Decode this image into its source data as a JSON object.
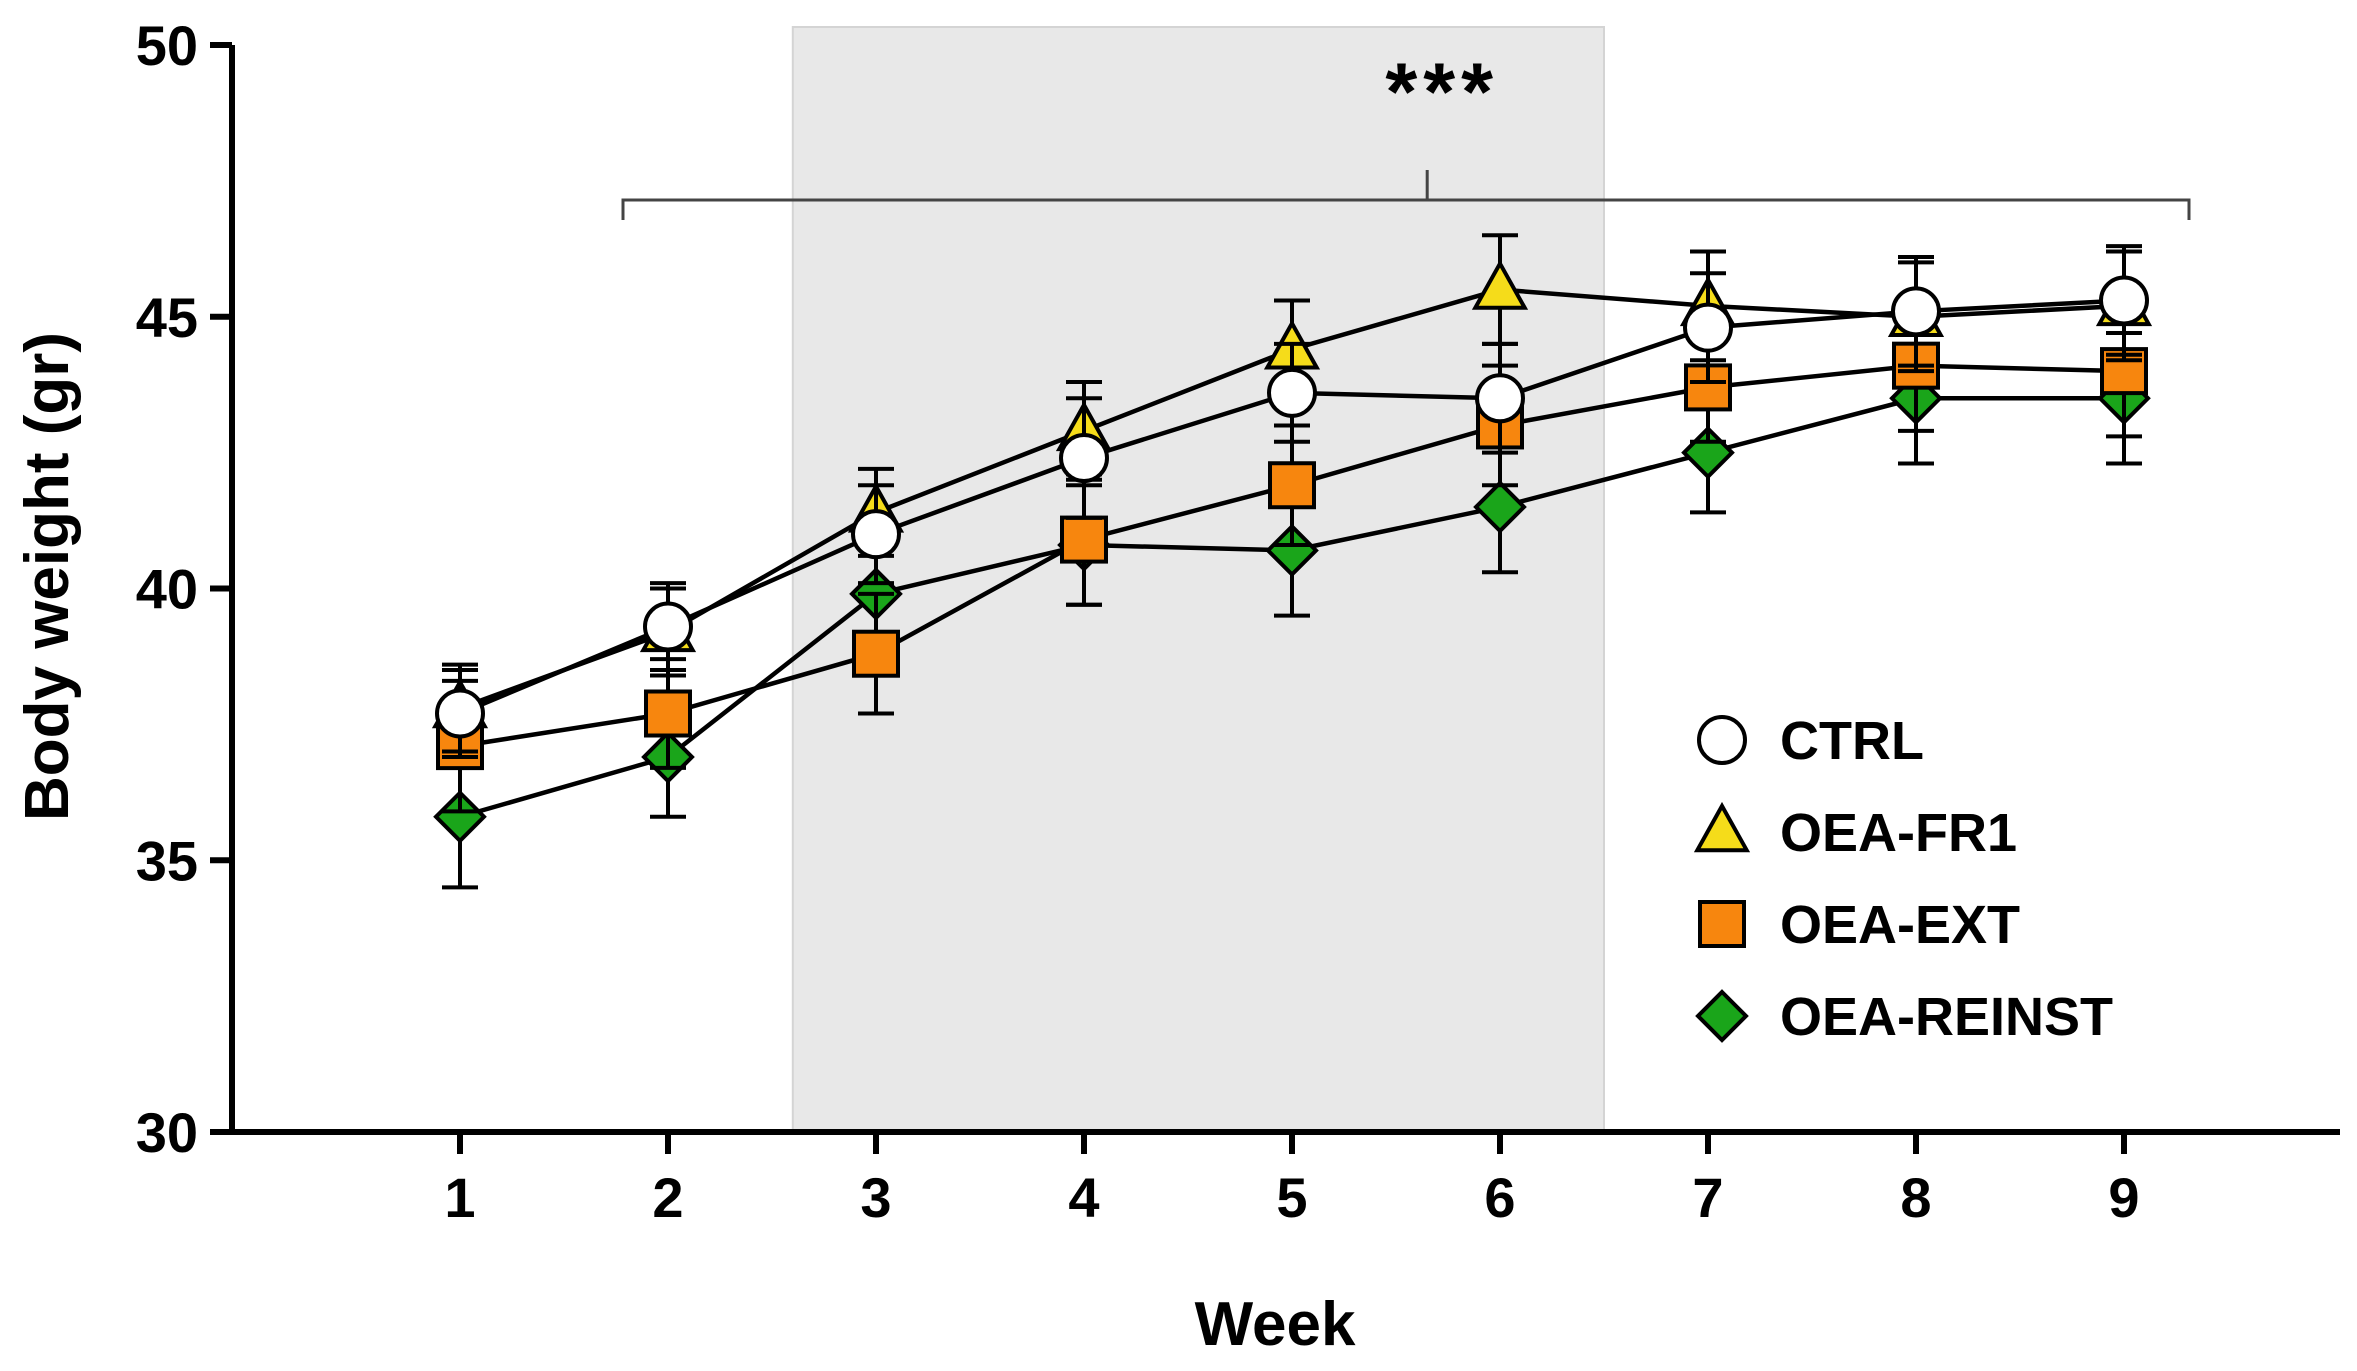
{
  "chart_data": {
    "type": "line",
    "title": "",
    "xlabel": "Week",
    "ylabel": "Body weight (gr)",
    "x": [
      1,
      2,
      3,
      4,
      5,
      6,
      7,
      8,
      9
    ],
    "x_tick_labels": [
      "1",
      "2",
      "3",
      "4",
      "5",
      "6",
      "7",
      "8",
      "9"
    ],
    "xlim": [
      0,
      9.9
    ],
    "ylim": [
      30,
      50
    ],
    "y_ticks": [
      30,
      35,
      40,
      45,
      50
    ],
    "y_tick_labels": [
      "30",
      "35",
      "40",
      "45",
      "50"
    ],
    "grid": false,
    "legend_position": "lower-right",
    "shaded_region": {
      "x_start": 2.6,
      "x_end": 6.5,
      "color": "#e8e8e8"
    },
    "significance": {
      "label": "***",
      "x_start": 2,
      "x_end": 9,
      "center_x": 5.65
    },
    "series": [
      {
        "name": "CTRL",
        "marker": "circle",
        "color": "#ffffff",
        "values": [
          37.7,
          39.3,
          41.0,
          42.4,
          43.6,
          43.5,
          44.8,
          45.1,
          45.3
        ],
        "errors": [
          0.8,
          0.8,
          0.9,
          1.1,
          0.9,
          1.0,
          1.0,
          1.0,
          1.0
        ]
      },
      {
        "name": "OEA-FR1",
        "marker": "triangle",
        "color": "#f5dc1a",
        "values": [
          37.8,
          39.2,
          41.4,
          42.9,
          44.4,
          45.5,
          45.2,
          45.0,
          45.2
        ],
        "errors": [
          0.8,
          0.8,
          0.8,
          0.9,
          0.9,
          1.0,
          1.0,
          1.0,
          1.0
        ]
      },
      {
        "name": "OEA-EXT",
        "marker": "square",
        "color": "#f7860e",
        "values": [
          37.1,
          37.7,
          38.8,
          40.9,
          41.9,
          43.0,
          43.7,
          44.1,
          44.0
        ],
        "errors": [
          1.2,
          1.0,
          1.1,
          1.2,
          1.1,
          1.1,
          1.0,
          1.2,
          1.2
        ]
      },
      {
        "name": "OEA-REINST",
        "marker": "diamond",
        "color": "#1aa51a",
        "values": [
          35.8,
          36.9,
          39.9,
          40.8,
          40.7,
          41.5,
          42.5,
          43.5,
          43.5
        ],
        "errors": [
          1.3,
          1.1,
          0.9,
          1.1,
          1.2,
          1.2,
          1.1,
          1.2,
          1.2
        ]
      }
    ]
  }
}
